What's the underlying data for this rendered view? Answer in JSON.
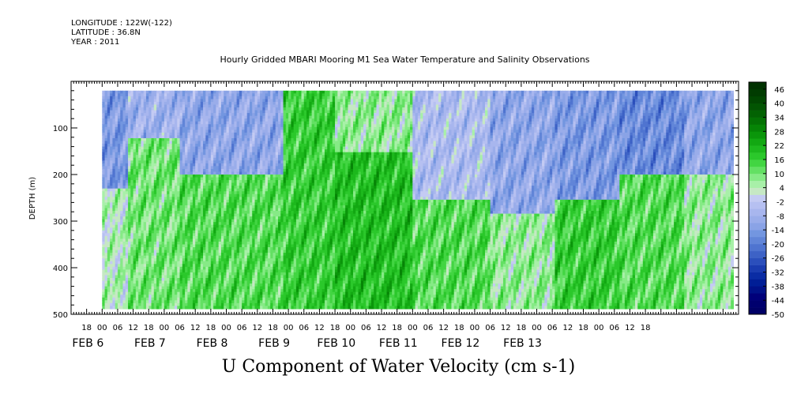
{
  "header": {
    "longitude": "LONGITUDE : 122W(-122)",
    "latitude": "LATITUDE : 36.8N",
    "year": "YEAR : 2011"
  },
  "chart_data": {
    "type": "heatmap",
    "title": "Hourly Gridded MBARI Mooring M1 Sea Water Temperature and Salinity Observations",
    "footer_title": "U Component of Water Velocity (cm s-1)",
    "ylabel": "DEPTH (m)",
    "y_axis": {
      "range": [
        0,
        500
      ],
      "inverted": true,
      "ticks": [
        100,
        200,
        300,
        400,
        500
      ],
      "data_range": [
        20,
        485
      ]
    },
    "x_axis": {
      "range_hours": [
        -12,
        246
      ],
      "data_range_hours": [
        0,
        244
      ],
      "hour_ticks": [
        "18",
        "00",
        "06",
        "12",
        "18",
        "00",
        "06",
        "12",
        "18",
        "00",
        "06",
        "12",
        "18",
        "00",
        "06",
        "12",
        "18",
        "00",
        "06",
        "12",
        "18",
        "00",
        "06",
        "12",
        "18",
        "00",
        "06",
        "12",
        "18",
        "00",
        "06",
        "12",
        "18",
        "00",
        "06",
        "12",
        "18"
      ],
      "date_labels": [
        "FEB  6",
        "FEB  7",
        "FEB  8",
        "FEB  9",
        "FEB 10",
        "FEB 11",
        "FEB 12",
        "FEB 13"
      ]
    },
    "colorbar": {
      "labels": [
        "46",
        "40",
        "34",
        "28",
        "22",
        "16",
        "10",
        "4",
        "-2",
        "-8",
        "-14",
        "-20",
        "-26",
        "-32",
        "-38",
        "-44",
        "-50"
      ],
      "levels": [
        -50,
        -47,
        -44,
        -41,
        -38,
        -35,
        -32,
        -29,
        -26,
        -23,
        -20,
        -17,
        -14,
        -11,
        -8,
        -5,
        -2,
        1,
        4,
        7,
        10,
        13,
        16,
        19,
        22,
        25,
        28,
        31,
        34,
        37,
        40,
        43,
        46,
        49
      ],
      "colors": [
        "#000066",
        "#00006e",
        "#00007a",
        "#001188",
        "#001e96",
        "#0a2ca4",
        "#1a3cb0",
        "#2b4fbc",
        "#3d62c6",
        "#4f74d0",
        "#6185d8",
        "#7396e0",
        "#8aa3e6",
        "#9aadea",
        "#a8b6ee",
        "#b6c0f1",
        "#c4cbf3",
        "#c6e8c4",
        "#a8f0a8",
        "#86ea86",
        "#63e063",
        "#42d542",
        "#2bc82b",
        "#1db81d",
        "#12a812",
        "#0a960a",
        "#068406",
        "#047204",
        "#036203",
        "#025402",
        "#014701",
        "#013c01",
        "#003200"
      ]
    },
    "grid": false,
    "field_description_in_data_units": {
      "bands": [
        {
          "hours": [
            0,
            10
          ],
          "depth_m": [
            20,
            230
          ],
          "u": -14
        },
        {
          "hours": [
            0,
            10
          ],
          "depth_m": [
            230,
            485
          ],
          "u": 4
        },
        {
          "hours": [
            10,
            30
          ],
          "depth_m": [
            20,
            120
          ],
          "u": -8
        },
        {
          "hours": [
            10,
            30
          ],
          "depth_m": [
            120,
            485
          ],
          "u": 10
        },
        {
          "hours": [
            30,
            70
          ],
          "depth_m": [
            20,
            200
          ],
          "u": -11
        },
        {
          "hours": [
            30,
            70
          ],
          "depth_m": [
            200,
            485
          ],
          "u": 13
        },
        {
          "hours": [
            70,
            90
          ],
          "depth_m": [
            20,
            485
          ],
          "u": 16
        },
        {
          "hours": [
            90,
            120
          ],
          "depth_m": [
            20,
            150
          ],
          "u": 7
        },
        {
          "hours": [
            90,
            120
          ],
          "depth_m": [
            150,
            485
          ],
          "u": 19
        },
        {
          "hours": [
            120,
            150
          ],
          "depth_m": [
            20,
            250
          ],
          "u": -5
        },
        {
          "hours": [
            120,
            150
          ],
          "depth_m": [
            250,
            485
          ],
          "u": 13
        },
        {
          "hours": [
            150,
            175
          ],
          "depth_m": [
            20,
            280
          ],
          "u": -11
        },
        {
          "hours": [
            150,
            175
          ],
          "depth_m": [
            280,
            485
          ],
          "u": 7
        },
        {
          "hours": [
            175,
            200
          ],
          "depth_m": [
            20,
            250
          ],
          "u": -14
        },
        {
          "hours": [
            175,
            200
          ],
          "depth_m": [
            250,
            485
          ],
          "u": 16
        },
        {
          "hours": [
            200,
            225
          ],
          "depth_m": [
            20,
            200
          ],
          "u": -17
        },
        {
          "hours": [
            200,
            225
          ],
          "depth_m": [
            200,
            485
          ],
          "u": 13
        },
        {
          "hours": [
            225,
            244
          ],
          "depth_m": [
            20,
            200
          ],
          "u": -11
        },
        {
          "hours": [
            225,
            244
          ],
          "depth_m": [
            200,
            485
          ],
          "u": 7
        }
      ]
    }
  }
}
